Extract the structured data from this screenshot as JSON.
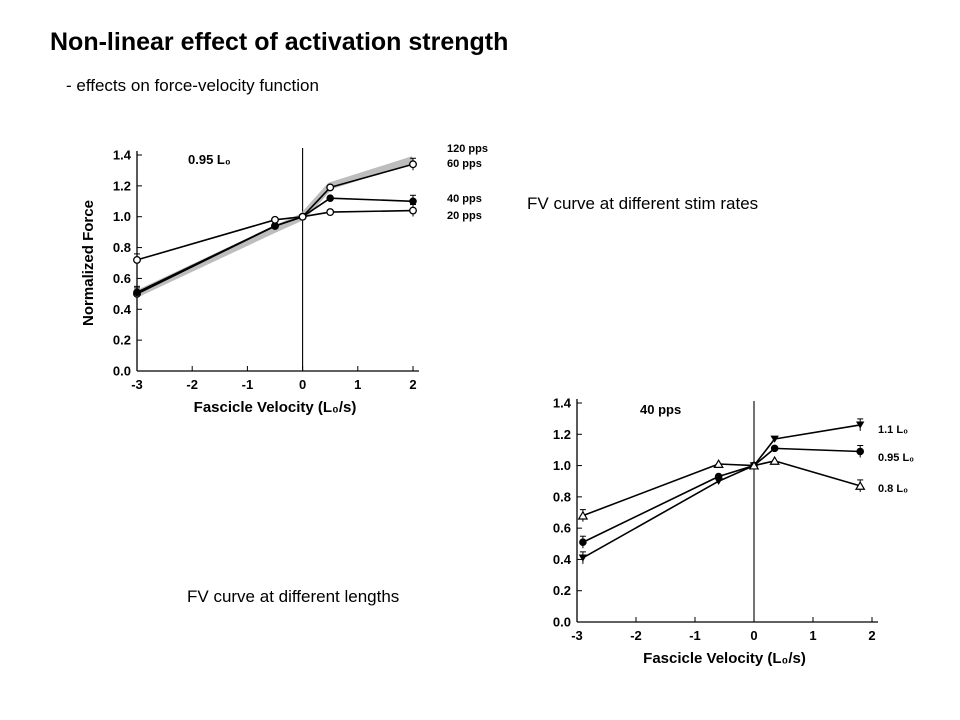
{
  "slide": {
    "title": "Non-linear effect of activation strength",
    "subtitle": "- effects on force-velocity function",
    "caption_top": "FV curve at different stim rates",
    "caption_bottom": "FV curve at different lengths"
  },
  "chart_data": [
    {
      "type": "line",
      "annotation": "0.95 L₀",
      "xlabel": "Fascicle Velocity (L₀/s)",
      "ylabel": "Normalized Force",
      "xlim": [
        -3,
        2
      ],
      "ylim": [
        0,
        1.4
      ],
      "xticks": [
        -3,
        -2,
        -1,
        0,
        1,
        2
      ],
      "yticks": [
        0.0,
        0.2,
        0.4,
        0.6,
        0.8,
        1.0,
        1.2,
        1.4
      ],
      "ytick_labels": [
        "0.0",
        "0.2",
        "0.4",
        "0.6",
        "0.8",
        "1.0",
        "1.2",
        "1.4"
      ],
      "grid": false,
      "series": [
        {
          "name": "120 pps",
          "style": "band",
          "x": [
            -3,
            -0.5,
            0,
            0.5,
            2
          ],
          "y": [
            0.5,
            0.92,
            1.0,
            1.2,
            1.37
          ]
        },
        {
          "name": "60 pps",
          "style": "open",
          "x": [
            -3,
            -0.5,
            0,
            0.5,
            2
          ],
          "y": [
            0.5,
            0.94,
            1.0,
            1.19,
            1.34
          ]
        },
        {
          "name": "40 pps",
          "style": "filled",
          "x": [
            -3,
            -0.5,
            0,
            0.5,
            2
          ],
          "y": [
            0.51,
            0.94,
            1.0,
            1.12,
            1.1
          ]
        },
        {
          "name": "20 pps",
          "style": "open",
          "x": [
            -3,
            -0.5,
            0,
            0.5,
            2
          ],
          "y": [
            0.72,
            0.98,
            1.0,
            1.03,
            1.04
          ]
        }
      ]
    },
    {
      "type": "line",
      "annotation": "40 pps",
      "xlabel": "Fascicle Velocity (L₀/s)",
      "ylabel": "",
      "xlim": [
        -3,
        2
      ],
      "ylim": [
        0,
        1.4
      ],
      "xticks": [
        -3,
        -2,
        -1,
        0,
        1,
        2
      ],
      "yticks": [
        0.0,
        0.2,
        0.4,
        0.6,
        0.8,
        1.0,
        1.2,
        1.4
      ],
      "ytick_labels": [
        "0.0",
        "0.2",
        "0.4",
        "0.6",
        "0.8",
        "1.0",
        "1.2",
        "1.4"
      ],
      "grid": false,
      "series": [
        {
          "name": "1.1 L₀",
          "marker": "triangle-down",
          "x": [
            -2.9,
            -0.6,
            0,
            0.35,
            1.8
          ],
          "y": [
            0.41,
            0.9,
            1.0,
            1.17,
            1.26
          ]
        },
        {
          "name": "0.95 L₀",
          "marker": "circle",
          "x": [
            -2.9,
            -0.6,
            0,
            0.35,
            1.8
          ],
          "y": [
            0.51,
            0.93,
            1.0,
            1.11,
            1.09
          ]
        },
        {
          "name": "0.8 L₀",
          "marker": "triangle-up-open",
          "x": [
            -2.9,
            -0.6,
            0,
            0.35,
            1.8
          ],
          "y": [
            0.68,
            1.01,
            1.0,
            1.03,
            0.87
          ]
        }
      ]
    }
  ]
}
